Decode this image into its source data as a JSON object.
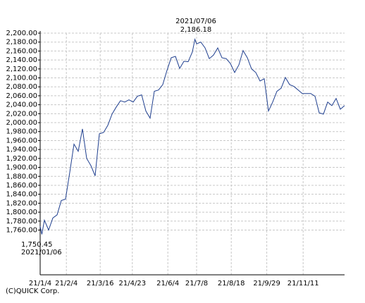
{
  "chart_data": {
    "type": "line",
    "annotations": {
      "max_date": "2021/07/06",
      "max_value": "2,186.18",
      "min_value": "1,750.45",
      "min_date": "2021/01/06"
    },
    "copyright": "(C)QUICK Corp.",
    "x": [
      "21/1/4",
      "21/1/6",
      "21/1/9",
      "21/1/14",
      "21/1/19",
      "21/1/24",
      "21/1/29",
      "21/2/3",
      "21/2/8",
      "21/2/13",
      "21/2/18",
      "21/2/23",
      "21/2/28",
      "21/3/5",
      "21/3/10",
      "21/3/15",
      "21/3/20",
      "21/3/25",
      "21/3/30",
      "21/4/4",
      "21/4/9",
      "21/4/14",
      "21/4/19",
      "21/4/24",
      "21/4/29",
      "21/5/4",
      "21/5/9",
      "21/5/14",
      "21/5/19",
      "21/5/24",
      "21/5/29",
      "21/6/3",
      "21/6/8",
      "21/6/13",
      "21/6/18",
      "21/6/23",
      "21/6/28",
      "21/7/3",
      "21/7/6",
      "21/7/8",
      "21/7/13",
      "21/7/18",
      "21/7/23",
      "21/7/28",
      "21/8/2",
      "21/8/7",
      "21/8/12",
      "21/8/17",
      "21/8/22",
      "21/8/27",
      "21/9/1",
      "21/9/6",
      "21/9/11",
      "21/9/16",
      "21/9/21",
      "21/9/26",
      "21/10/1",
      "21/10/6",
      "21/10/11",
      "21/10/16",
      "21/10/21",
      "21/10/26",
      "21/10/31",
      "21/11/5",
      "21/11/10",
      "21/11/15",
      "21/11/20",
      "21/11/25",
      "21/11/30",
      "21/12/5",
      "21/12/10",
      "21/12/15",
      "21/12/20",
      "21/12/25",
      "21/12/30"
    ],
    "series": [
      {
        "color": "#1f3f8f",
        "values": [
          1768,
          1750.45,
          1782,
          1760,
          1787,
          1794,
          1826,
          1829,
          1889,
          1952,
          1936,
          1986,
          1920,
          1904,
          1881,
          1975,
          1978,
          1994,
          2019,
          2035,
          2049,
          2046,
          2051,
          2046,
          2059,
          2062,
          2026,
          2010,
          2070,
          2073,
          2085,
          2117,
          2145,
          2148,
          2121,
          2137,
          2136,
          2158,
          2186.18,
          2176,
          2180,
          2167,
          2143,
          2151,
          2167,
          2145,
          2143,
          2132,
          2112,
          2129,
          2161,
          2145,
          2120,
          2112,
          2093,
          2098,
          2026,
          2046,
          2070,
          2077,
          2101,
          2085,
          2081,
          2073,
          2065,
          2065,
          2065,
          2059,
          2022,
          2019,
          2046,
          2038,
          2054,
          2030,
          2038
        ]
      }
    ],
    "xlim": [
      "21/1/4",
      "21/12/30"
    ],
    "xticks": [
      "21/1/4",
      "21/2/4",
      "21/3/16",
      "21/4/23",
      "21/6/4",
      "21/7/8",
      "21/8/18",
      "21/9/29",
      "21/11/11"
    ],
    "ylim": [
      1660,
      2200
    ],
    "yticks": [
      {
        "value": 1760,
        "label": "1,760.00"
      },
      {
        "value": 1780,
        "label": "1,780.00"
      },
      {
        "value": 1800,
        "label": "1,800.00"
      },
      {
        "value": 1820,
        "label": "1,820.00"
      },
      {
        "value": 1840,
        "label": "1,840.00"
      },
      {
        "value": 1860,
        "label": "1,860.00"
      },
      {
        "value": 1880,
        "label": "1,880.00"
      },
      {
        "value": 1900,
        "label": "1,900.00"
      },
      {
        "value": 1920,
        "label": "1,920.00"
      },
      {
        "value": 1940,
        "label": "1,940.00"
      },
      {
        "value": 1960,
        "label": "1,960.00"
      },
      {
        "value": 1980,
        "label": "1,980.00"
      },
      {
        "value": 2000,
        "label": "2,000.00"
      },
      {
        "value": 2020,
        "label": "2,020.00"
      },
      {
        "value": 2040,
        "label": "2,040.00"
      },
      {
        "value": 2060,
        "label": "2,060.00"
      },
      {
        "value": 2080,
        "label": "2,080.00"
      },
      {
        "value": 2100,
        "label": "2,100.00"
      },
      {
        "value": 2120,
        "label": "2,120.00"
      },
      {
        "value": 2140,
        "label": "2,140.00"
      },
      {
        "value": 2160,
        "label": "2,160.00"
      },
      {
        "value": 2180,
        "label": "2,180.00"
      },
      {
        "value": 2200,
        "label": "2,200.00"
      }
    ],
    "grid": true
  }
}
